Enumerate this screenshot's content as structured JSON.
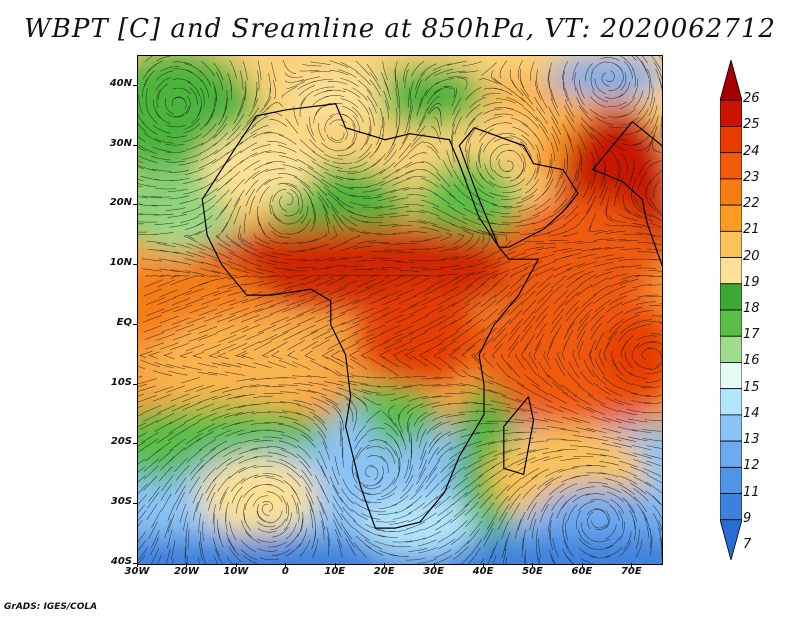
{
  "title": "WBPT [C] and Sreamline at 850hPa, VT: 2020062712",
  "credit": "GrADS: IGES/COLA",
  "lat_labels": [
    {
      "text": "40N",
      "lat": 40
    },
    {
      "text": "30N",
      "lat": 30
    },
    {
      "text": "20N",
      "lat": 20
    },
    {
      "text": "10N",
      "lat": 10
    },
    {
      "text": "EQ",
      "lat": 0
    },
    {
      "text": "10S",
      "lat": -10
    },
    {
      "text": "20S",
      "lat": -20
    },
    {
      "text": "30S",
      "lat": -30
    },
    {
      "text": "40S",
      "lat": -40
    }
  ],
  "lon_labels": [
    {
      "text": "30W",
      "lon": -30
    },
    {
      "text": "20W",
      "lon": -20
    },
    {
      "text": "10W",
      "lon": -10
    },
    {
      "text": "0",
      "lon": 0
    },
    {
      "text": "10E",
      "lon": 10
    },
    {
      "text": "20E",
      "lon": 20
    },
    {
      "text": "30E",
      "lon": 30
    },
    {
      "text": "40E",
      "lon": 40
    },
    {
      "text": "50E",
      "lon": 50
    },
    {
      "text": "60E",
      "lon": 60
    },
    {
      "text": "70E",
      "lon": 70
    }
  ],
  "colorbar": {
    "levels": [
      {
        "label": "26",
        "color": "#a50000"
      },
      {
        "label": "25",
        "color": "#c81400"
      },
      {
        "label": "24",
        "color": "#e63c00"
      },
      {
        "label": "23",
        "color": "#f05a0a"
      },
      {
        "label": "22",
        "color": "#f57d14"
      },
      {
        "label": "21",
        "color": "#fa9b23"
      },
      {
        "label": "20",
        "color": "#fac35a"
      },
      {
        "label": "19",
        "color": "#fae196"
      },
      {
        "label": "18",
        "color": "#3caa32"
      },
      {
        "label": "17",
        "color": "#5abe46"
      },
      {
        "label": "16",
        "color": "#a0dc8c"
      },
      {
        "label": "15",
        "color": "#e6faf5"
      },
      {
        "label": "14",
        "color": "#b4e6fa"
      },
      {
        "label": "13",
        "color": "#8cc3f5"
      },
      {
        "label": "12",
        "color": "#6eaaf0"
      },
      {
        "label": "11",
        "color": "#5096e6"
      },
      {
        "label": "9",
        "color": "#3c82dc"
      },
      {
        "label": "7",
        "color": "#286ed2"
      }
    ]
  }
}
